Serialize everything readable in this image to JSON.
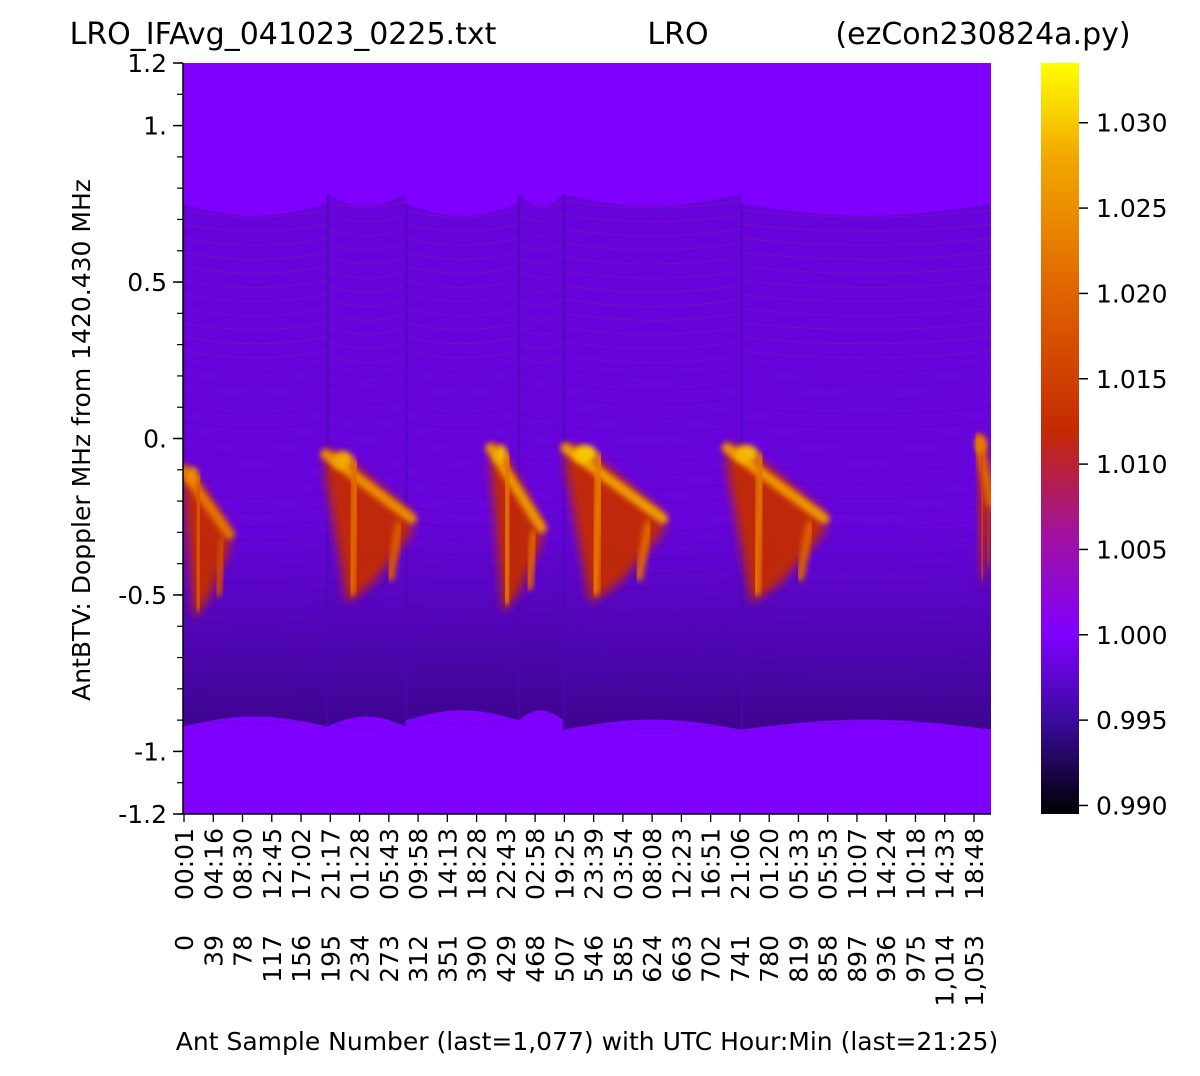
{
  "chart_data": {
    "type": "heatmap",
    "title_left": "LRO_IFAvg_041023_0225.txt",
    "title_center": "LRO",
    "title_right": "(ezCon230824a.py)",
    "xlabel": "Ant Sample Number (last=1,077) with UTC Hour:Min (last=21:25)",
    "ylabel": "AntBTV:  Doppler MHz from 1420.430 MHz",
    "x_range": [
      0,
      1077
    ],
    "ylim": [
      -1.2,
      1.2
    ],
    "y_ticks": [
      {
        "value": 1.2,
        "label": "1.2"
      },
      {
        "value": 1.0,
        "label": "1."
      },
      {
        "value": 0.5,
        "label": "0.5"
      },
      {
        "value": 0.0,
        "label": "0."
      },
      {
        "value": -0.5,
        "label": "-0.5"
      },
      {
        "value": -1.0,
        "label": "-1."
      },
      {
        "value": -1.2,
        "label": "-1.2"
      }
    ],
    "y_minor_step": 0.1,
    "x_ticks": [
      {
        "sample": 0,
        "label": "0",
        "time": "00:01"
      },
      {
        "sample": 39,
        "label": "39",
        "time": "04:16"
      },
      {
        "sample": 78,
        "label": "78",
        "time": "08:30"
      },
      {
        "sample": 117,
        "label": "117",
        "time": "12:45"
      },
      {
        "sample": 156,
        "label": "156",
        "time": "17:02"
      },
      {
        "sample": 195,
        "label": "195",
        "time": "21:17"
      },
      {
        "sample": 234,
        "label": "234",
        "time": "01:28"
      },
      {
        "sample": 273,
        "label": "273",
        "time": "05:43"
      },
      {
        "sample": 312,
        "label": "312",
        "time": "09:58"
      },
      {
        "sample": 351,
        "label": "351",
        "time": "14:13"
      },
      {
        "sample": 390,
        "label": "390",
        "time": "18:28"
      },
      {
        "sample": 429,
        "label": "429",
        "time": "22:43"
      },
      {
        "sample": 468,
        "label": "468",
        "time": "02:58"
      },
      {
        "sample": 507,
        "label": "507",
        "time": "19:25"
      },
      {
        "sample": 546,
        "label": "546",
        "time": "23:39"
      },
      {
        "sample": 585,
        "label": "585",
        "time": "03:54"
      },
      {
        "sample": 624,
        "label": "624",
        "time": "08:08"
      },
      {
        "sample": 663,
        "label": "663",
        "time": "12:23"
      },
      {
        "sample": 702,
        "label": "702",
        "time": "16:51"
      },
      {
        "sample": 741,
        "label": "741",
        "time": "21:06"
      },
      {
        "sample": 780,
        "label": "780",
        "time": "01:20"
      },
      {
        "sample": 819,
        "label": "819",
        "time": "05:33"
      },
      {
        "sample": 858,
        "label": "858",
        "time": "05:53"
      },
      {
        "sample": 897,
        "label": "897",
        "time": "10:07"
      },
      {
        "sample": 936,
        "label": "936",
        "time": "14:24"
      },
      {
        "sample": 975,
        "label": "975",
        "time": "10:18"
      },
      {
        "sample": 1014,
        "label": "1,014",
        "time": "14:33"
      },
      {
        "sample": 1053,
        "label": "1,053",
        "time": "18:48"
      }
    ],
    "colorbar": {
      "vmin": 0.9895,
      "vmax": 1.0335,
      "ticks": [
        {
          "value": 0.99,
          "label": "0.990"
        },
        {
          "value": 0.995,
          "label": "0.995"
        },
        {
          "value": 1.0,
          "label": "1.000"
        },
        {
          "value": 1.005,
          "label": "1.005"
        },
        {
          "value": 1.01,
          "label": "1.010"
        },
        {
          "value": 1.015,
          "label": "1.015"
        },
        {
          "value": 1.02,
          "label": "1.020"
        },
        {
          "value": 1.025,
          "label": "1.025"
        },
        {
          "value": 1.03,
          "label": "1.030"
        }
      ],
      "colormap": "gnuplot",
      "stops": [
        {
          "value": 0.9895,
          "color": "#000000"
        },
        {
          "value": 0.995,
          "color": "#3b0b9e"
        },
        {
          "value": 1.0,
          "color": "#7f00ff"
        },
        {
          "value": 1.006,
          "color": "#a3129c"
        },
        {
          "value": 1.012,
          "color": "#c42a00"
        },
        {
          "value": 1.02,
          "color": "#e06400"
        },
        {
          "value": 1.028,
          "color": "#f2a800"
        },
        {
          "value": 1.0335,
          "color": "#ffff00"
        }
      ]
    },
    "background_value": 1.0,
    "sections": [
      {
        "from": 0,
        "to": 192,
        "band_top": 0.75,
        "band_bottom": -0.92
      },
      {
        "from": 192,
        "to": 297,
        "band_top": 0.78,
        "band_bottom": -0.92
      },
      {
        "from": 297,
        "to": 447,
        "band_top": 0.75,
        "band_bottom": -0.9
      },
      {
        "from": 447,
        "to": 507,
        "band_top": 0.78,
        "band_bottom": -0.9
      },
      {
        "from": 507,
        "to": 744,
        "band_top": 0.78,
        "band_bottom": -0.93
      },
      {
        "from": 744,
        "to": 1077,
        "band_top": 0.75,
        "band_bottom": -0.93
      }
    ],
    "emission_features": [
      {
        "start": 0,
        "end": 62,
        "y_start": -0.1,
        "y_end": -0.3,
        "peak": 1.022
      },
      {
        "start": 190,
        "end": 305,
        "y_start": -0.05,
        "y_end": -0.25,
        "peak": 1.025
      },
      {
        "start": 410,
        "end": 478,
        "y_start": -0.03,
        "y_end": -0.28,
        "peak": 1.026
      },
      {
        "start": 510,
        "end": 640,
        "y_start": -0.03,
        "y_end": -0.25,
        "peak": 1.027
      },
      {
        "start": 725,
        "end": 855,
        "y_start": -0.03,
        "y_end": -0.25,
        "peak": 1.026
      },
      {
        "start": 1060,
        "end": 1077,
        "y_start": 0.0,
        "y_end": -0.2,
        "peak": 1.02
      }
    ]
  }
}
